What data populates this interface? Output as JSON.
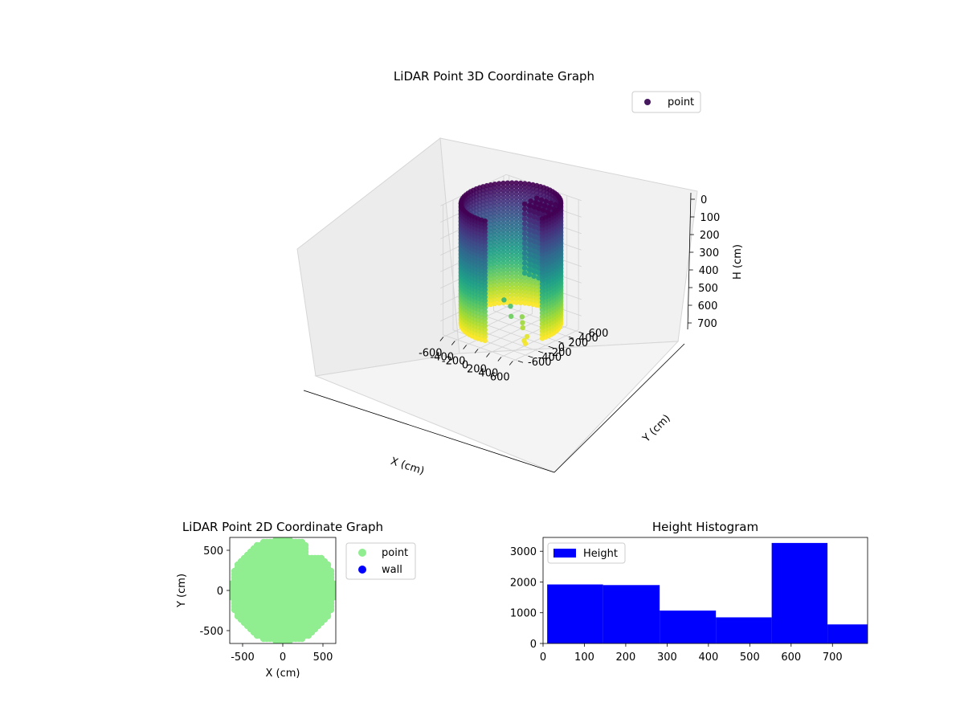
{
  "figure": {
    "background": "#ffffff"
  },
  "chart_data": [
    {
      "type": "scatter",
      "title": "LiDAR Point 3D Coordinate Graph",
      "xlabel": "X (cm)",
      "ylabel": "Y (cm)",
      "zlabel": "H (cm)",
      "xlim": [
        -650,
        650
      ],
      "ylim": [
        -650,
        650
      ],
      "zlim": [
        790,
        0
      ],
      "zaxis_inverted": true,
      "x_ticks": [
        -600,
        -400,
        -200,
        0,
        200,
        400,
        600
      ],
      "y_ticks": [
        600,
        400,
        200,
        0,
        -200,
        -400,
        -600
      ],
      "z_ticks": [
        0,
        100,
        200,
        300,
        400,
        500,
        600,
        700
      ],
      "grid": true,
      "legend": {
        "placement": "upper-right",
        "entries": [
          "point"
        ]
      },
      "colormap": "viridis",
      "color_encoding": "H (cm), approximately 0 to 730",
      "series": [
        {
          "name": "point",
          "description": "cylindrical wall scan: radius about 650 cm, heights about 0 to 730 cm; partial interior structure in the +x,+y quadrant; a few scattered outliers toward +x,-y"
        }
      ]
    },
    {
      "type": "scatter",
      "title": "LiDAR Point 2D Coordinate Graph",
      "xlabel": "X (cm)",
      "ylabel": "Y (cm)",
      "xlim": [
        -660,
        660
      ],
      "ylim": [
        -660,
        660
      ],
      "x_ticks": [
        -500,
        0,
        500
      ],
      "y_ticks": [
        500,
        0,
        -500
      ],
      "legend": {
        "placement": "outside-right",
        "entries": [
          "point",
          "wall"
        ]
      },
      "series": [
        {
          "name": "point",
          "color": "#90ee90",
          "description": "filled disc of radius about 650 cm with a small notch near x 400, y 500"
        },
        {
          "name": "wall",
          "color": "#0000ff",
          "description": "none visible (fully covered by point markers)"
        }
      ]
    },
    {
      "type": "bar",
      "title": "Height Histogram",
      "xlabel": "",
      "ylabel": "",
      "xlim": [
        0,
        785
      ],
      "ylim": [
        0,
        3450
      ],
      "x_ticks": [
        0,
        100,
        200,
        300,
        400,
        500,
        600,
        700
      ],
      "y_ticks": [
        0,
        1000,
        2000,
        3000
      ],
      "legend": {
        "placement": "upper-left",
        "entries": [
          "Height"
        ]
      },
      "series": [
        {
          "name": "Height",
          "color": "#0000ff",
          "bins": [
            {
              "from": 10,
              "to": 145,
              "count": 1920
            },
            {
              "from": 145,
              "to": 282,
              "count": 1900
            },
            {
              "from": 282,
              "to": 418,
              "count": 1070
            },
            {
              "from": 418,
              "to": 553,
              "count": 850
            },
            {
              "from": 553,
              "to": 688,
              "count": 3270
            },
            {
              "from": 688,
              "to": 785,
              "count": 620
            }
          ]
        }
      ]
    }
  ]
}
